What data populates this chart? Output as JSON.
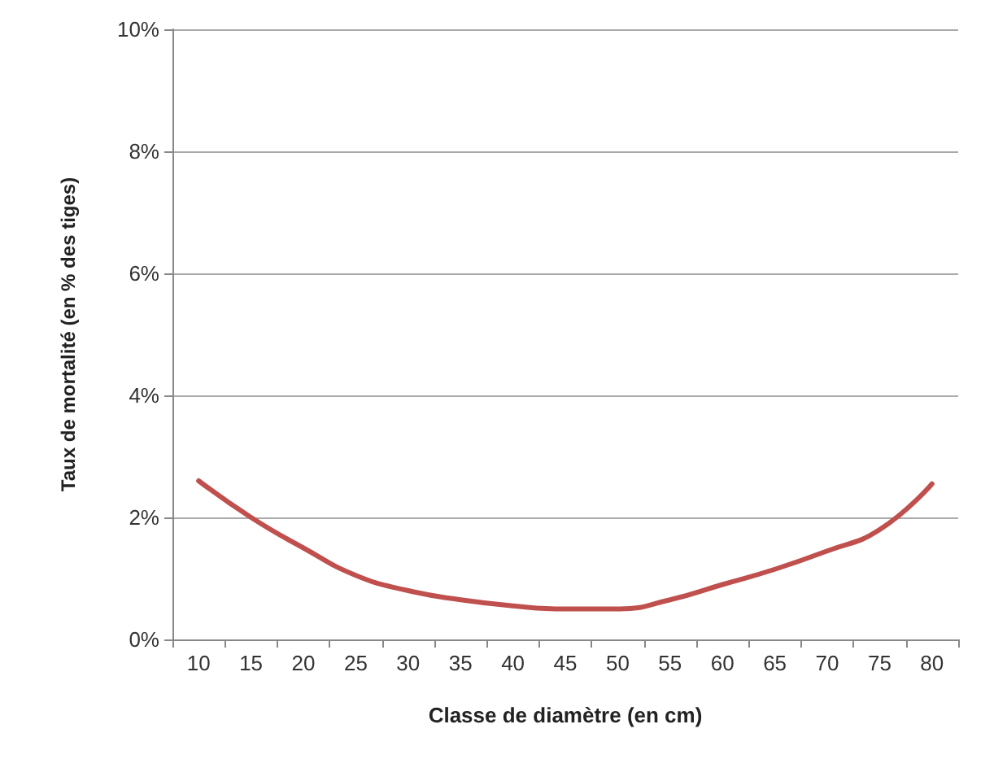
{
  "chart_data": {
    "type": "line",
    "xlabel": "Classe de diamètre (en cm)",
    "ylabel": "Taux de mortalité (en % des tiges)",
    "categories": [
      "10",
      "15",
      "20",
      "25",
      "30",
      "35",
      "40",
      "45",
      "50",
      "55",
      "60",
      "65",
      "70",
      "75",
      "80"
    ],
    "series": [
      {
        "color": "#c0504d",
        "values": [
          2.6,
          2.0,
          1.5,
          1.05,
          0.8,
          0.65,
          0.55,
          0.5,
          0.5,
          0.65,
          0.9,
          1.15,
          1.45,
          1.8,
          2.55
        ]
      }
    ],
    "ylim": [
      0,
      10
    ],
    "yticks": [
      {
        "value": 0,
        "label": "0%"
      },
      {
        "value": 2,
        "label": "2%"
      },
      {
        "value": 4,
        "label": "4%"
      },
      {
        "value": 6,
        "label": "6%"
      },
      {
        "value": 8,
        "label": "8%"
      },
      {
        "value": 10,
        "label": "10%"
      }
    ],
    "grid": "y",
    "marker": "none",
    "line_style": "solid"
  }
}
